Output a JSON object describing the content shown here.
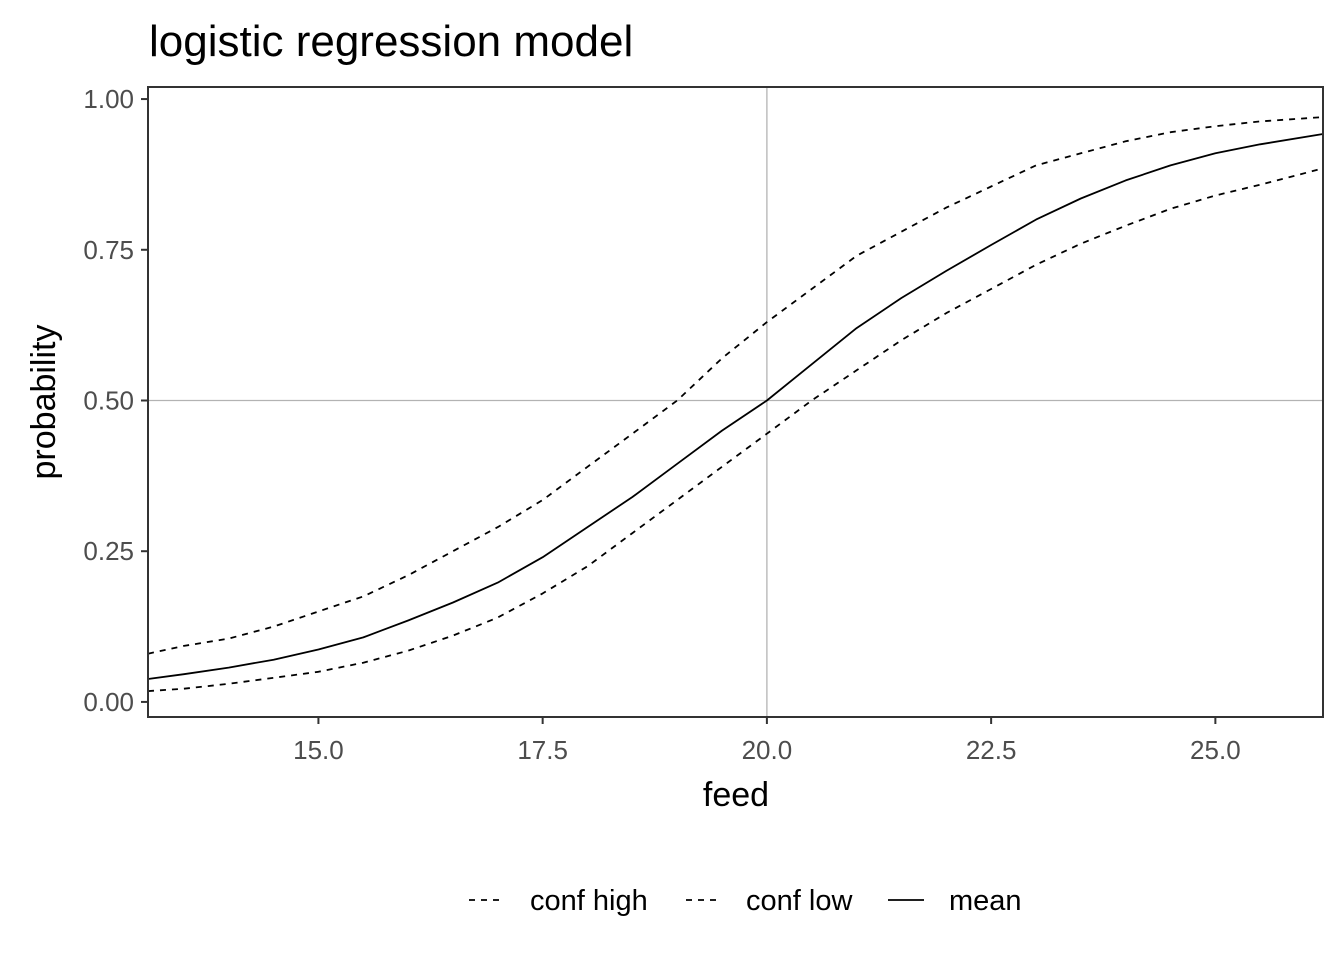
{
  "chart_data": {
    "type": "line",
    "title": "logistic regression model",
    "xlabel": "feed",
    "ylabel": "probability",
    "xlim": [
      13.1,
      26.2
    ],
    "ylim": [
      -0.025,
      1.02
    ],
    "x_ticks": [
      15.0,
      17.5,
      20.0,
      22.5,
      25.0
    ],
    "x_tick_labels": [
      "15.0",
      "17.5",
      "20.0",
      "22.5",
      "25.0"
    ],
    "y_ticks": [
      0.0,
      0.25,
      0.5,
      0.75,
      1.0
    ],
    "y_tick_labels": [
      "0.00",
      "0.25",
      "0.50",
      "0.75",
      "1.00"
    ],
    "grid": "major gridlines at x=20.0 and y=0.50 only",
    "legend_position": "bottom",
    "x": [
      13.1,
      13.5,
      14.0,
      14.5,
      15.0,
      15.5,
      16.0,
      16.5,
      17.0,
      17.5,
      18.0,
      18.5,
      19.0,
      19.5,
      20.0,
      20.5,
      21.0,
      21.5,
      22.0,
      22.5,
      23.0,
      23.5,
      24.0,
      24.5,
      25.0,
      25.5,
      26.2
    ],
    "series": [
      {
        "name": "conf high",
        "linetype": "dashed",
        "values": [
          0.08,
          0.093,
          0.105,
          0.125,
          0.15,
          0.175,
          0.21,
          0.25,
          0.29,
          0.335,
          0.39,
          0.445,
          0.5,
          0.57,
          0.63,
          0.685,
          0.74,
          0.78,
          0.82,
          0.855,
          0.89,
          0.91,
          0.93,
          0.945,
          0.955,
          0.963,
          0.97
        ]
      },
      {
        "name": "conf low",
        "linetype": "dashed",
        "values": [
          0.018,
          0.022,
          0.03,
          0.04,
          0.05,
          0.065,
          0.085,
          0.11,
          0.14,
          0.18,
          0.225,
          0.28,
          0.335,
          0.39,
          0.445,
          0.5,
          0.55,
          0.6,
          0.645,
          0.685,
          0.725,
          0.76,
          0.79,
          0.818,
          0.84,
          0.858,
          0.885
        ]
      },
      {
        "name": "mean",
        "linetype": "solid",
        "values": [
          0.038,
          0.046,
          0.057,
          0.07,
          0.087,
          0.107,
          0.135,
          0.165,
          0.198,
          0.24,
          0.29,
          0.34,
          0.395,
          0.45,
          0.5,
          0.56,
          0.62,
          0.67,
          0.715,
          0.758,
          0.8,
          0.835,
          0.865,
          0.89,
          0.91,
          0.925,
          0.942
        ]
      }
    ],
    "colors": {
      "line": "#000000",
      "panel_border": "#333333",
      "grid": "#b3b3b3",
      "tick_label": "#4d4d4d",
      "tick_mark": "#333333"
    }
  }
}
